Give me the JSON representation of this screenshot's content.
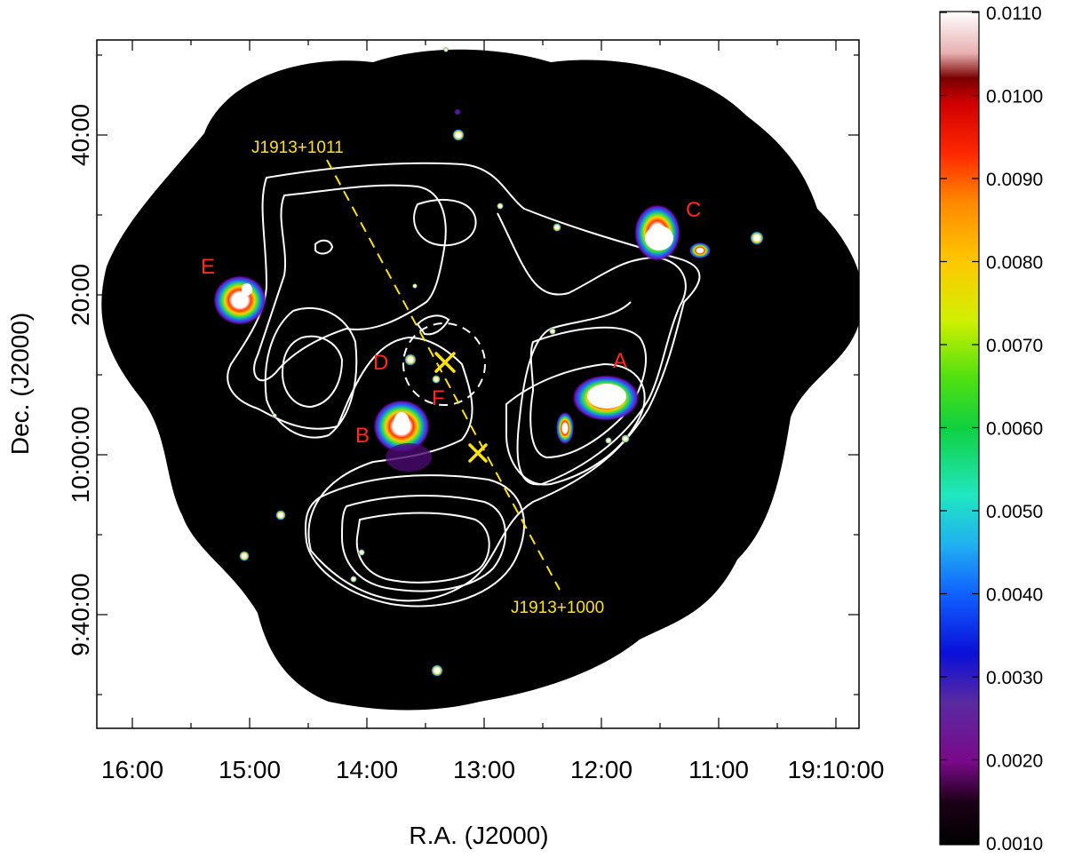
{
  "axes": {
    "xlabel": "R.A. (J2000)",
    "ylabel": "Dec. (J2000)",
    "xticks": [
      "16:00",
      "15:00",
      "14:00",
      "13:00",
      "12:00",
      "11:00",
      "19:10:00"
    ],
    "yticks": [
      "9:40:00",
      "10:00:00",
      "20:00",
      "40:00"
    ],
    "ytick_anchor": [
      "9:40:00",
      "10:00:00",
      "20:00",
      "40:00"
    ]
  },
  "colorbar": {
    "ticks": [
      "0.0110",
      "0.0100",
      "0.0090",
      "0.0080",
      "0.0070",
      "0.0060",
      "0.0050",
      "0.0040",
      "0.0030",
      "0.0020",
      "0.0010"
    ],
    "min": 0.001,
    "max": 0.011,
    "colormap": "rainbow-black-to-white"
  },
  "sources": {
    "A": "A",
    "B": "B",
    "C": "C",
    "D": "D",
    "E": "E",
    "F": "F"
  },
  "pulsars": {
    "north": "J1913+1011",
    "south": "J1913+1000"
  },
  "colors": {
    "background": "#000000",
    "contours": "#ffffff",
    "source_labels": "#ff2a1a",
    "pulsar_markers": "#ffe400"
  }
}
